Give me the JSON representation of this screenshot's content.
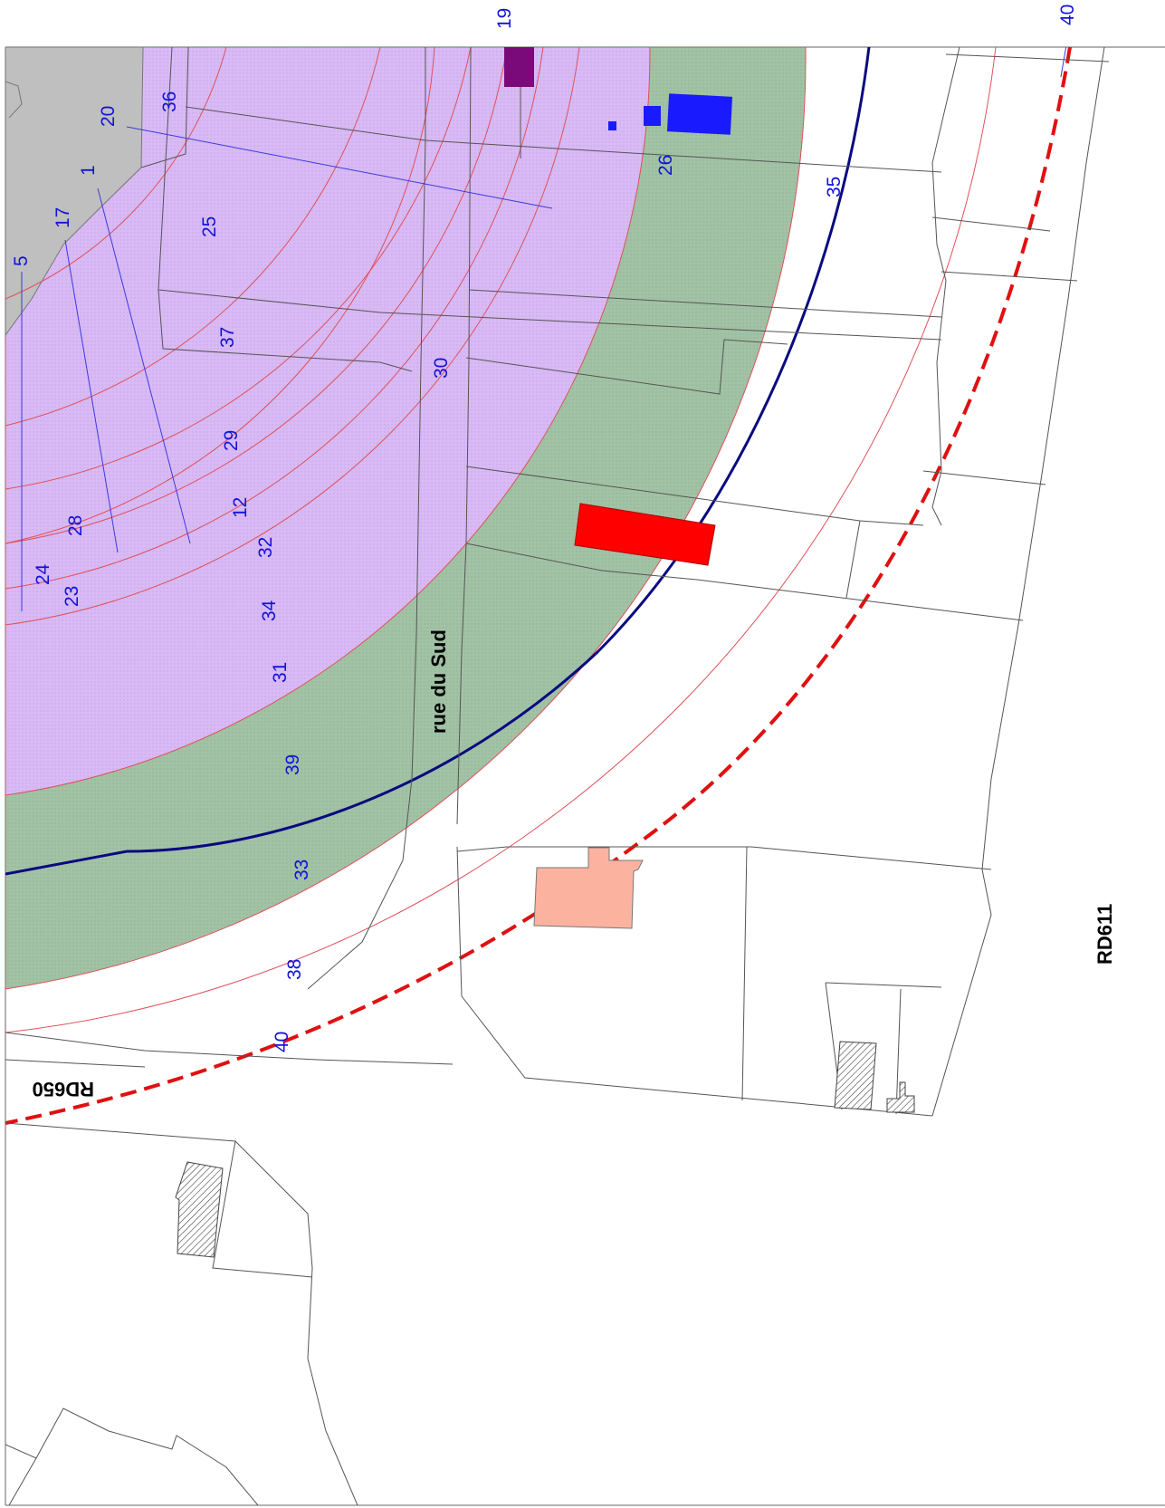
{
  "map": {
    "zone_labels": [
      "19",
      "40",
      "36",
      "20",
      "1",
      "17",
      "5",
      "25",
      "26",
      "35",
      "37",
      "30",
      "29",
      "12",
      "28",
      "32",
      "24",
      "23",
      "34",
      "31",
      "39",
      "33",
      "38",
      "40"
    ],
    "road_labels": {
      "rue_du_sud": "rue du Sud",
      "rd611": "RD611",
      "rd650": "RD650"
    },
    "colors": {
      "inner_zone": "#d6b8f4",
      "outer_zone": "#9fc0a4",
      "built_area": "#c0c0c0",
      "blue_boundary": "#0a0a80",
      "red_dashed_boundary": "#e01010",
      "red_building": "#ff0000",
      "salmon_building": "#fbb3a0",
      "blue_building": "#1a1aff",
      "purple_building": "#7a0a7a",
      "label_blue": "#1212d8"
    }
  }
}
